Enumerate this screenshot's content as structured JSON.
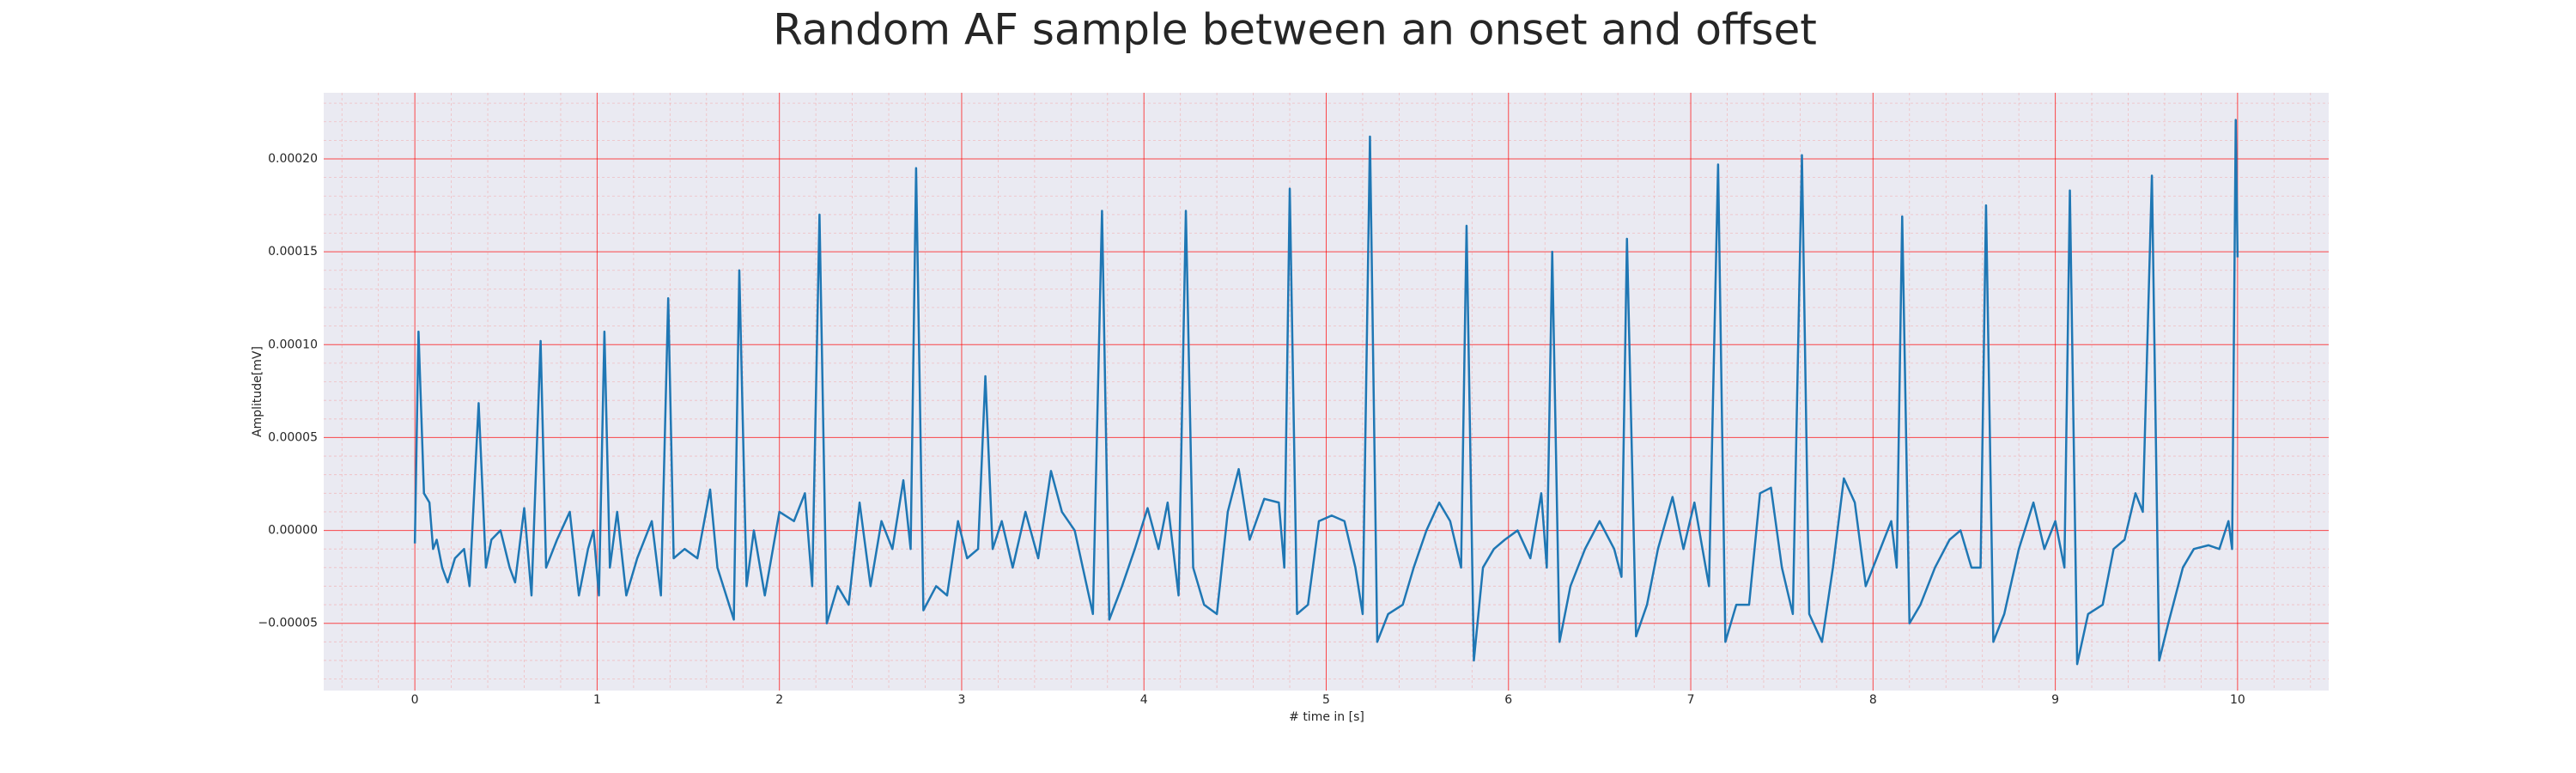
{
  "chart_data": {
    "type": "line",
    "title": "Random AF sample between an onset and offset",
    "xlabel": "# time in [s]",
    "ylabel": "Amplitude[mV]",
    "color": "#1f77b4",
    "grid": true,
    "minor_grid": true,
    "xlim": [
      -0.5,
      10.5
    ],
    "ylim": [
      -8.62e-05,
      0.0002356
    ],
    "xticks": [
      0,
      1,
      2,
      3,
      4,
      5,
      6,
      7,
      8,
      9,
      10
    ],
    "yticks": [
      {
        "value": -5e-05,
        "label": "−0.00005"
      },
      {
        "value": 0,
        "label": "0.00000"
      },
      {
        "value": 5e-05,
        "label": "0.00005"
      },
      {
        "value": 0.0001,
        "label": "0.00010"
      },
      {
        "value": 0.00015,
        "label": "0.00015"
      },
      {
        "value": 0.0002,
        "label": "0.00020"
      }
    ],
    "x": [
      0.0,
      0.02,
      0.05,
      0.08,
      0.1,
      0.12,
      0.15,
      0.18,
      0.22,
      0.27,
      0.3,
      0.35,
      0.39,
      0.42,
      0.47,
      0.52,
      0.55,
      0.6,
      0.64,
      0.69,
      0.72,
      0.78,
      0.85,
      0.9,
      0.95,
      0.98,
      1.01,
      1.04,
      1.07,
      1.11,
      1.16,
      1.22,
      1.3,
      1.35,
      1.39,
      1.42,
      1.48,
      1.55,
      1.62,
      1.66,
      1.75,
      1.78,
      1.82,
      1.86,
      1.92,
      2.0,
      2.08,
      2.14,
      2.18,
      2.22,
      2.26,
      2.32,
      2.38,
      2.44,
      2.5,
      2.56,
      2.62,
      2.68,
      2.72,
      2.75,
      2.79,
      2.86,
      2.92,
      2.98,
      3.03,
      3.09,
      3.13,
      3.17,
      3.22,
      3.28,
      3.35,
      3.42,
      3.49,
      3.55,
      3.62,
      3.72,
      3.77,
      3.81,
      3.88,
      3.95,
      4.02,
      4.08,
      4.13,
      4.19,
      4.23,
      4.27,
      4.33,
      4.4,
      4.46,
      4.52,
      4.58,
      4.66,
      4.74,
      4.77,
      4.8,
      4.84,
      4.9,
      4.96,
      5.03,
      5.1,
      5.16,
      5.2,
      5.24,
      5.28,
      5.34,
      5.42,
      5.48,
      5.55,
      5.62,
      5.68,
      5.74,
      5.77,
      5.81,
      5.86,
      5.92,
      5.98,
      6.05,
      6.12,
      6.18,
      6.21,
      6.24,
      6.28,
      6.34,
      6.42,
      6.5,
      6.58,
      6.62,
      6.65,
      6.7,
      6.76,
      6.82,
      6.9,
      6.96,
      7.02,
      7.1,
      7.15,
      7.19,
      7.25,
      7.32,
      7.38,
      7.44,
      7.5,
      7.56,
      7.61,
      7.65,
      7.72,
      7.78,
      7.84,
      7.9,
      7.96,
      8.02,
      8.1,
      8.13,
      8.16,
      8.2,
      8.26,
      8.34,
      8.42,
      8.48,
      8.54,
      8.59,
      8.62,
      8.66,
      8.72,
      8.8,
      8.88,
      8.94,
      9.0,
      9.05,
      9.08,
      9.12,
      9.18,
      9.26,
      9.32,
      9.38,
      9.44,
      9.48,
      9.53,
      9.57,
      9.62,
      9.7,
      9.76,
      9.84,
      9.9,
      9.95,
      9.97,
      9.99,
      10.0
    ],
    "values": [
      -7e-06,
      0.000107,
      2e-05,
      1.5e-05,
      -1e-05,
      -5e-06,
      -2e-05,
      -2.8e-05,
      -1.5e-05,
      -1e-05,
      -3e-05,
      6.85e-05,
      -2e-05,
      -5e-06,
      0,
      -2e-05,
      -2.8e-05,
      1.2e-05,
      -3.5e-05,
      0.000102,
      -2e-05,
      -5e-06,
      1e-05,
      -3.5e-05,
      -1e-05,
      0,
      -3.5e-05,
      0.000107,
      -2e-05,
      1e-05,
      -3.5e-05,
      -1.5e-05,
      5e-06,
      -3.5e-05,
      0.000125,
      -1.5e-05,
      -1e-05,
      -1.5e-05,
      2.2e-05,
      -2e-05,
      -4.8e-05,
      0.00014,
      -3e-05,
      0,
      -3.5e-05,
      1e-05,
      5e-06,
      2e-05,
      -3e-05,
      0.00017,
      -5e-05,
      -3e-05,
      -4e-05,
      1.5e-05,
      -3e-05,
      5e-06,
      -1e-05,
      2.7e-05,
      -1e-05,
      0.000195,
      -4.3e-05,
      -3e-05,
      -3.5e-05,
      5e-06,
      -1.5e-05,
      -1e-05,
      8.3e-05,
      -1e-05,
      5e-06,
      -2e-05,
      1e-05,
      -1.5e-05,
      3.2e-05,
      1e-05,
      0,
      -4.5e-05,
      0.000172,
      -4.8e-05,
      -3e-05,
      -1e-05,
      1.2e-05,
      -1e-05,
      1.5e-05,
      -3.5e-05,
      0.000172,
      -2e-05,
      -4e-05,
      -4.5e-05,
      1e-05,
      3.3e-05,
      -5e-06,
      1.7e-05,
      1.5e-05,
      -2e-05,
      0.000184,
      -4.5e-05,
      -4e-05,
      5e-06,
      8e-06,
      5e-06,
      -2e-05,
      -4.5e-05,
      0.000212,
      -6e-05,
      -4.5e-05,
      -4e-05,
      -2e-05,
      0,
      1.5e-05,
      5e-06,
      -2e-05,
      0.000164,
      -7e-05,
      -2e-05,
      -1e-05,
      -5e-06,
      0,
      -1.5e-05,
      2e-05,
      -2e-05,
      0.00015,
      -6e-05,
      -3e-05,
      -1e-05,
      5e-06,
      -1e-05,
      -2.5e-05,
      0.000157,
      -5.7e-05,
      -4e-05,
      -1e-05,
      1.8e-05,
      -1e-05,
      1.5e-05,
      -3e-05,
      0.000197,
      -6e-05,
      -4e-05,
      -4e-05,
      2e-05,
      2.3e-05,
      -2e-05,
      -4.5e-05,
      0.000202,
      -4.5e-05,
      -6e-05,
      -2e-05,
      2.8e-05,
      1.5e-05,
      -3e-05,
      -1.5e-05,
      5e-06,
      -2e-05,
      0.000169,
      -5e-05,
      -4e-05,
      -2e-05,
      -5e-06,
      0,
      -2e-05,
      -2e-05,
      0.000175,
      -6e-05,
      -4.5e-05,
      -1e-05,
      1.5e-05,
      -1e-05,
      5e-06,
      -2e-05,
      0.000183,
      -7.2e-05,
      -4.5e-05,
      -4e-05,
      -1e-05,
      -5e-06,
      2e-05,
      1e-05,
      0.000191,
      -7e-05,
      -5e-05,
      -2e-05,
      -1e-05,
      -8e-06,
      -1e-05,
      5e-06,
      -1e-05,
      0.000221,
      0.000147
    ]
  }
}
